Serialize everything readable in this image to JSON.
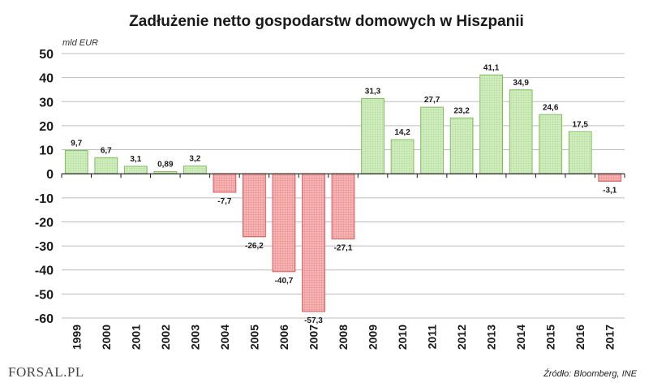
{
  "header": {
    "title": "Zadłużenie netto gospodarstw domowych w Hiszpanii",
    "unit": "mld EUR"
  },
  "footer": {
    "source": "Źródło: Bloomberg, INE",
    "logo_text": "FORSAL.PL"
  },
  "colors": {
    "positive_fill": "#bfe3a8",
    "positive_stroke": "#7fbf5a",
    "negative_fill": "#f29a9a",
    "negative_stroke": "#d85a5a",
    "grid": "#bdbdbd"
  },
  "chart_data": {
    "type": "bar",
    "title": "Zadłużenie netto gospodarstw domowych w Hiszpanii",
    "ylabel": "mld EUR",
    "xlabel": "",
    "ylim": [
      -60,
      50
    ],
    "yticks": [
      50,
      40,
      30,
      20,
      10,
      0,
      -10,
      -20,
      -30,
      -40,
      -50,
      -60
    ],
    "grid": true,
    "categories": [
      "1999",
      "2000",
      "2001",
      "2002",
      "2003",
      "2004",
      "2005",
      "2006",
      "2007",
      "2008",
      "2009",
      "2010",
      "2011",
      "2012",
      "2013",
      "2014",
      "2015",
      "2016",
      "2017"
    ],
    "values": [
      9.7,
      6.7,
      3.1,
      0.89,
      3.2,
      -7.7,
      -26.2,
      -40.7,
      -57.3,
      -27.1,
      31.3,
      14.2,
      27.7,
      23.2,
      41.1,
      34.9,
      24.6,
      17.5,
      -3.1
    ],
    "labels": [
      "9,7",
      "6,7",
      "3,1",
      "0,89",
      "3,2",
      "-7,7",
      "-26,2",
      "-40,7",
      "-57,3",
      "-27,1",
      "31,3",
      "14,2",
      "27,7",
      "23,2",
      "41,1",
      "34,9",
      "24,6",
      "17,5",
      "-3,1"
    ]
  }
}
